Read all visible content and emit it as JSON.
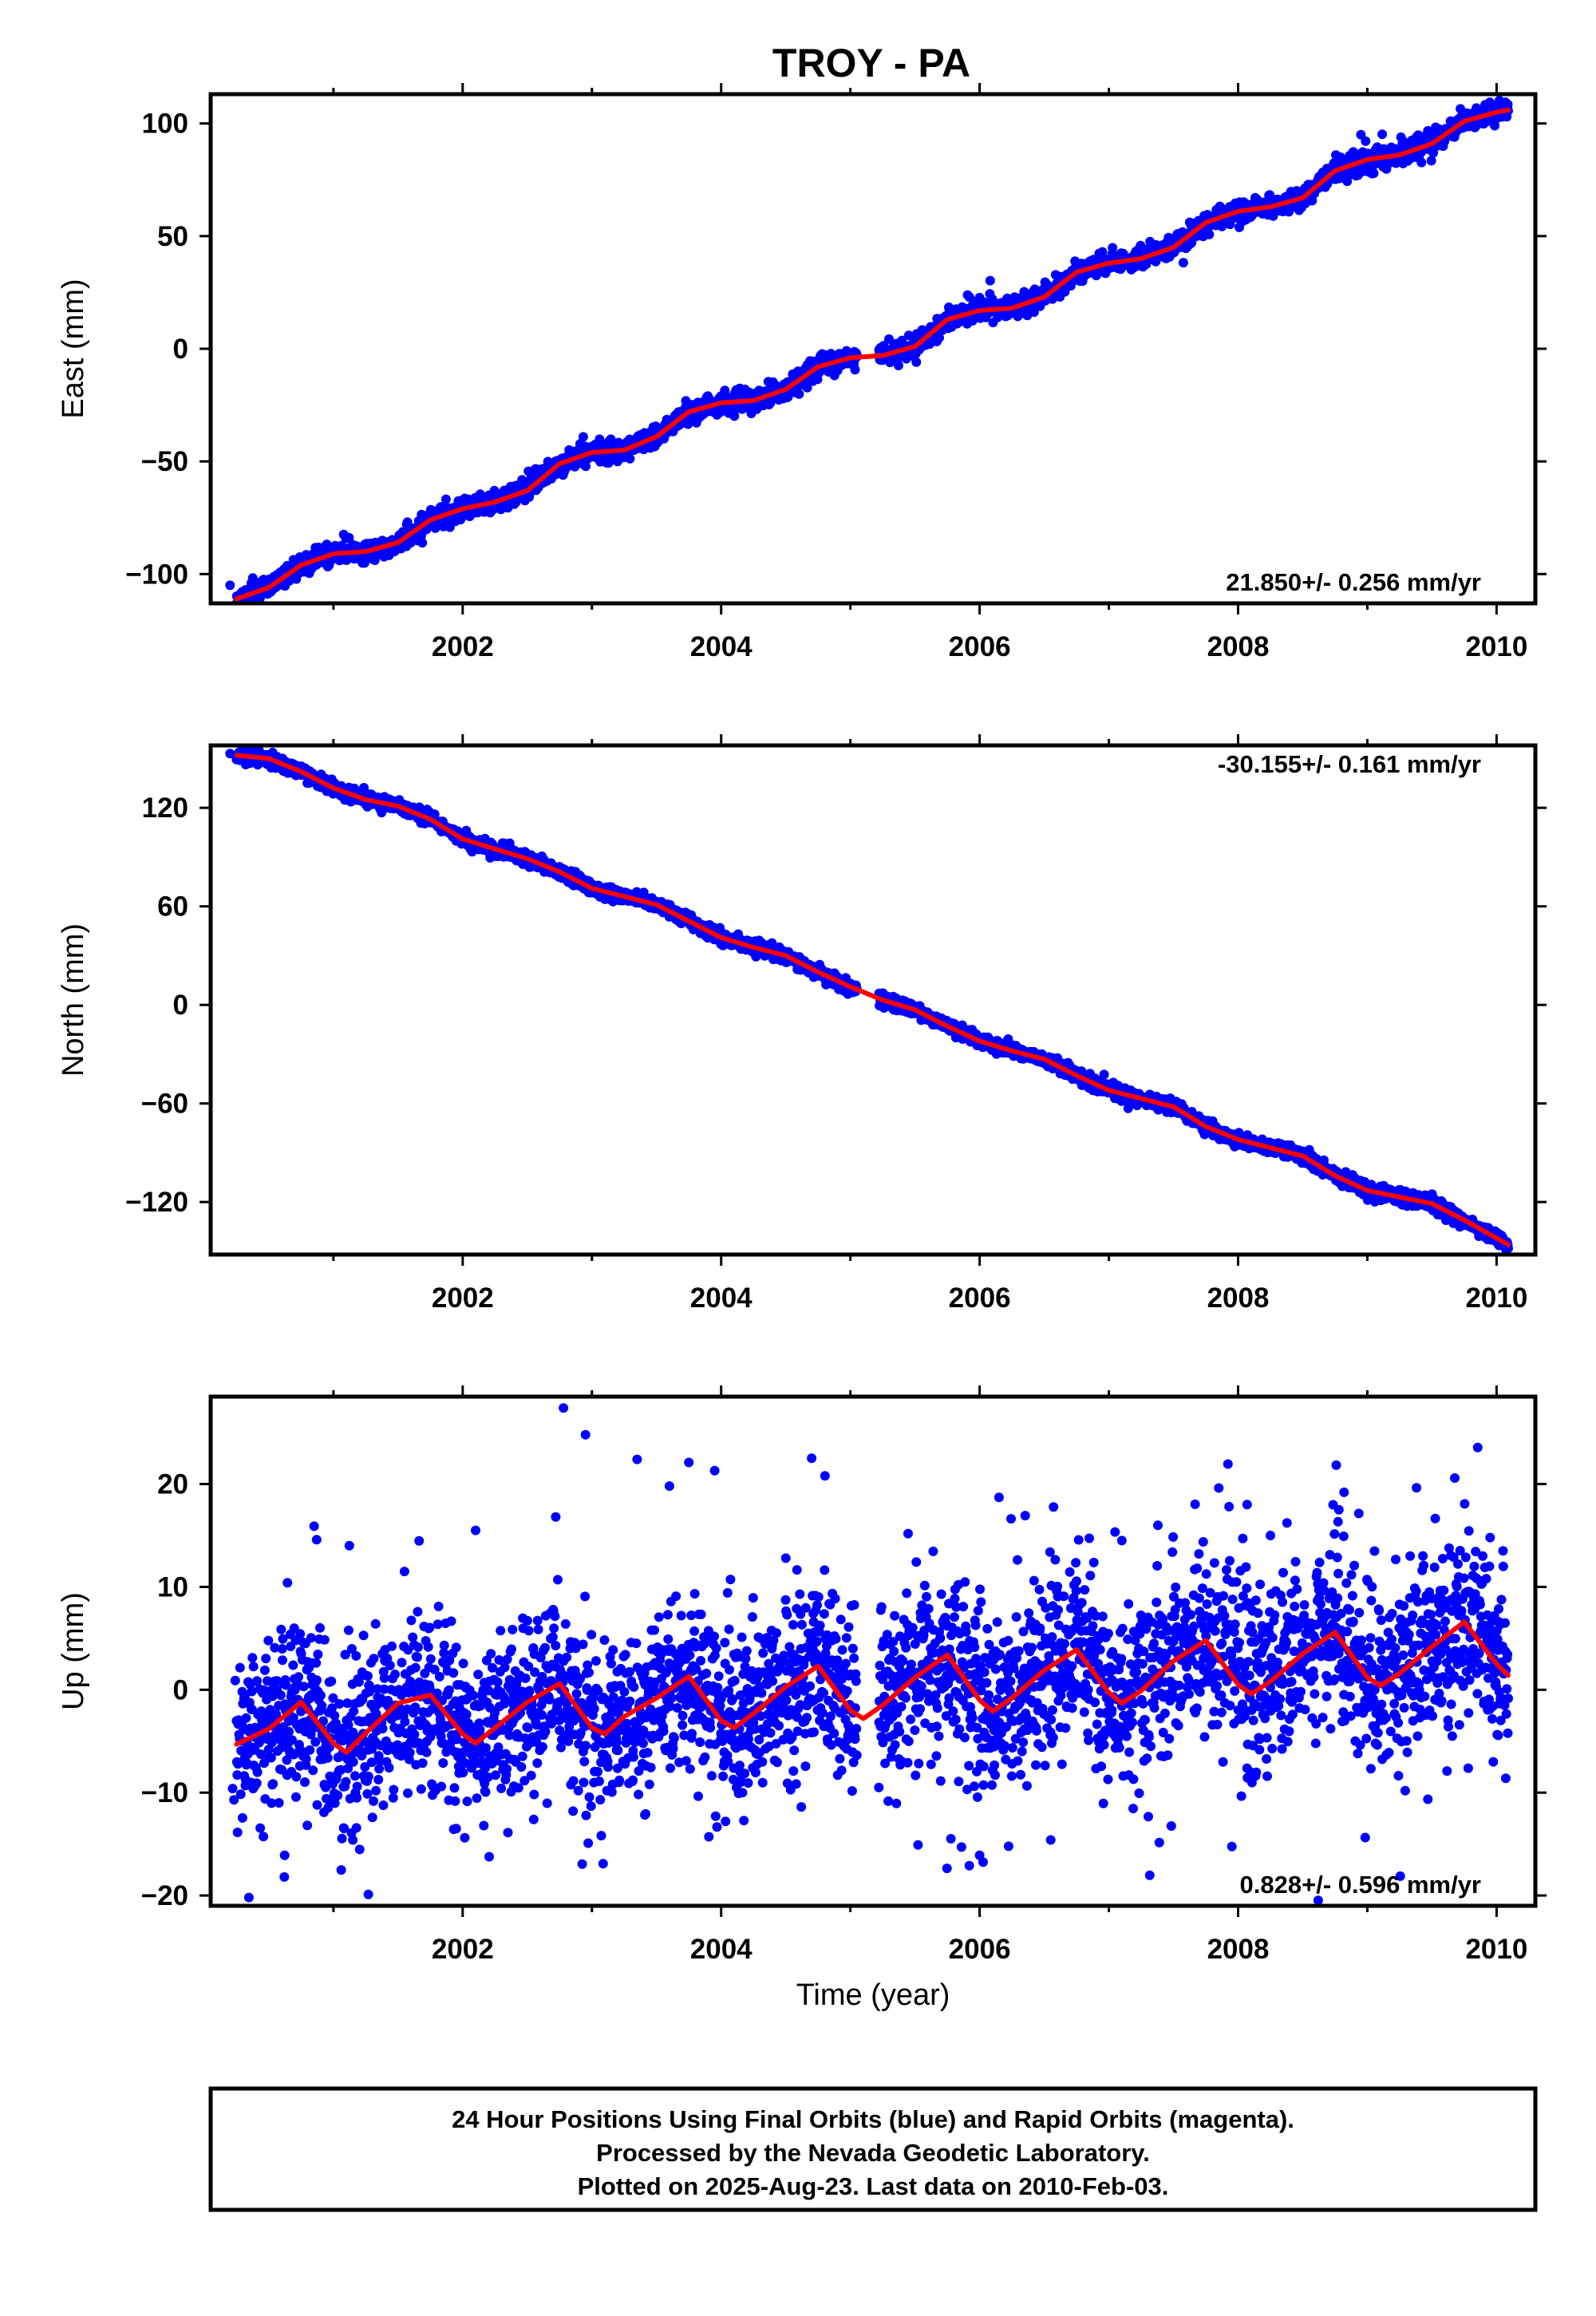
{
  "title": "TROY - PA",
  "colors": {
    "final_orbits": "#0000ff",
    "rapid_orbits": "#ff00ff",
    "model": "#ff0000",
    "frame": "#000000"
  },
  "footer": {
    "line1": "24 Hour Positions Using Final Orbits (blue) and Rapid Orbits (magenta).",
    "line2": "Processed by the Nevada Geodetic Laboratory.",
    "line3": "Plotted on 2025-Aug-23. Last data on 2010-Feb-03."
  },
  "chart_data": [
    {
      "type": "scatter",
      "title": "TROY - PA",
      "xlabel": "",
      "ylabel": "East (mm)",
      "xlim": [
        2000.05,
        2010.3
      ],
      "ylim": [
        -113,
        113
      ],
      "x_ticks": [
        2002,
        2004,
        2006,
        2008,
        2010
      ],
      "x_tick_labels": [
        "2002",
        "2004",
        "2006",
        "2008",
        "2010"
      ],
      "y_ticks": [
        -100,
        -50,
        0,
        50,
        100
      ],
      "y_tick_labels": [
        "−100",
        "−50",
        "0",
        "50",
        "100"
      ],
      "rate_label": "21.850+/- 0.256 mm/yr",
      "rate_position": "bottom-right",
      "data_gap": [
        2005.05,
        2005.22
      ],
      "daily_scatter": {
        "color": "#0000ff",
        "noise_mm": 2.2,
        "outlier_chance": 0.005,
        "seed": 11
      },
      "model_curve": {
        "color": "#ff0000",
        "x": [
          2000.25,
          2000.5,
          2000.75,
          2001.0,
          2001.25,
          2001.5,
          2001.75,
          2002.0,
          2002.25,
          2002.5,
          2002.75,
          2003.0,
          2003.25,
          2003.5,
          2003.75,
          2004.0,
          2004.25,
          2004.5,
          2004.75,
          2005.0,
          2005.25,
          2005.5,
          2005.75,
          2006.0,
          2006.25,
          2006.5,
          2006.75,
          2007.0,
          2007.25,
          2007.5,
          2007.75,
          2008.0,
          2008.25,
          2008.5,
          2008.75,
          2009.0,
          2009.25,
          2009.5,
          2009.75,
          2010.0,
          2010.09
        ],
        "y": [
          -111,
          -106,
          -96,
          -91,
          -90,
          -86,
          -76,
          -71,
          -68,
          -63,
          -51,
          -46,
          -45,
          -39,
          -28,
          -24,
          -23,
          -18,
          -8,
          -4,
          -3,
          1,
          13,
          17,
          18,
          23,
          34,
          38,
          40,
          45,
          56,
          61,
          63,
          67,
          79,
          84,
          86,
          91,
          101,
          105,
          106
        ]
      },
      "points": [
        [
          2000.2,
          -105
        ],
        [
          2008.95,
          95
        ],
        [
          2006.95,
          43
        ]
      ]
    },
    {
      "type": "scatter",
      "xlabel": "",
      "ylabel": "North (mm)",
      "xlim": [
        2000.05,
        2010.3
      ],
      "ylim": [
        -152,
        158
      ],
      "x_ticks": [
        2002,
        2004,
        2006,
        2008,
        2010
      ],
      "x_tick_labels": [
        "2002",
        "2004",
        "2006",
        "2008",
        "2010"
      ],
      "y_ticks": [
        -120,
        -60,
        0,
        60,
        120
      ],
      "y_tick_labels": [
        "−120",
        "−60",
        "0",
        "60",
        "120"
      ],
      "rate_label": "-30.155+/- 0.161 mm/yr",
      "rate_position": "top-right",
      "data_gap": [
        2005.05,
        2005.22
      ],
      "daily_scatter": {
        "color": "#0000ff",
        "noise_mm": 2.0,
        "outlier_chance": 0.0,
        "seed": 23
      },
      "model_curve": {
        "color": "#ff0000",
        "x": [
          2000.25,
          2000.5,
          2000.75,
          2001.0,
          2001.25,
          2001.5,
          2001.75,
          2002.0,
          2002.25,
          2002.5,
          2002.75,
          2003.0,
          2003.25,
          2003.5,
          2003.75,
          2004.0,
          2004.25,
          2004.5,
          2004.75,
          2005.0,
          2005.25,
          2005.5,
          2005.75,
          2006.0,
          2006.25,
          2006.5,
          2006.75,
          2007.0,
          2007.25,
          2007.5,
          2007.75,
          2008.0,
          2008.25,
          2008.5,
          2008.75,
          2009.0,
          2009.25,
          2009.5,
          2009.75,
          2010.0,
          2010.09
        ],
        "y": [
          152,
          150,
          142,
          132,
          125,
          121,
          113,
          101,
          95,
          89,
          81,
          71,
          66,
          61,
          51,
          41,
          35,
          30,
          20,
          11,
          3,
          -3,
          -13,
          -22,
          -28,
          -33,
          -43,
          -52,
          -57,
          -62,
          -74,
          -82,
          -87,
          -92,
          -104,
          -113,
          -117,
          -121,
          -131,
          -142,
          -146
        ]
      },
      "points": [
        [
          2000.2,
          153
        ]
      ]
    },
    {
      "type": "scatter",
      "xlabel": "Time (year)",
      "ylabel": "Up (mm)",
      "xlim": [
        2000.05,
        2010.3
      ],
      "ylim": [
        -21,
        28.5
      ],
      "x_ticks": [
        2002,
        2004,
        2006,
        2008,
        2010
      ],
      "x_tick_labels": [
        "2002",
        "2004",
        "2006",
        "2008",
        "2010"
      ],
      "y_ticks": [
        -20,
        -10,
        0,
        10,
        20
      ],
      "y_tick_labels": [
        "−20",
        "−10",
        "0",
        "10",
        "20"
      ],
      "rate_label": "0.828+/- 0.596 mm/yr",
      "rate_position": "bottom-right",
      "data_gap": [
        2005.05,
        2005.22
      ],
      "daily_scatter": {
        "color": "#0000ff",
        "noise_mm": 4.2,
        "outlier_chance": 0.02,
        "seed": 37
      },
      "model_curve": {
        "color": "#ff0000",
        "x": [
          2000.25,
          2000.5,
          2000.75,
          2001.0,
          2001.1,
          2001.25,
          2001.5,
          2001.75,
          2002.0,
          2002.1,
          2002.25,
          2002.5,
          2002.75,
          2003.0,
          2003.1,
          2003.25,
          2003.5,
          2003.75,
          2004.0,
          2004.1,
          2004.25,
          2004.5,
          2004.75,
          2005.0,
          2005.1,
          2005.25,
          2005.5,
          2005.75,
          2006.0,
          2006.1,
          2006.25,
          2006.5,
          2006.75,
          2007.0,
          2007.1,
          2007.25,
          2007.5,
          2007.75,
          2008.0,
          2008.1,
          2008.25,
          2008.5,
          2008.75,
          2009.0,
          2009.1,
          2009.25,
          2009.5,
          2009.75,
          2010.0,
          2010.09
        ],
        "y": [
          -5.3,
          -3.8,
          -1.2,
          -5.2,
          -6.1,
          -4.2,
          -1.3,
          -0.5,
          -4.3,
          -5.2,
          -3.7,
          -1.2,
          0.6,
          -3.7,
          -4.3,
          -2.6,
          -0.8,
          1.3,
          -3.0,
          -3.7,
          -2.3,
          0.3,
          2.3,
          -2.0,
          -2.8,
          -1.5,
          1.2,
          3.4,
          -1.0,
          -2.1,
          -0.8,
          1.9,
          3.9,
          -0.3,
          -1.3,
          -0.1,
          2.8,
          4.8,
          0.5,
          -0.4,
          0.8,
          3.5,
          5.6,
          1.2,
          0.4,
          1.6,
          4.2,
          6.6,
          2.5,
          1.4
        ]
      },
      "points": [
        [
          2000.22,
          -9.6
        ],
        [
          2000.23,
          -10.7
        ],
        [
          2000.24,
          0.9
        ],
        [
          2000.62,
          -18.2
        ],
        [
          2001.27,
          -19.9
        ],
        [
          2001.15,
          -14.6
        ],
        [
          2001.95,
          -13.5
        ],
        [
          2002.1,
          15.5
        ],
        [
          2002.78,
          27.4
        ],
        [
          2002.95,
          24.8
        ],
        [
          2003.35,
          22.4
        ],
        [
          2003.6,
          19.8
        ],
        [
          2003.75,
          22.1
        ],
        [
          2003.95,
          21.3
        ],
        [
          2004.7,
          22.5
        ],
        [
          2006.15,
          18.7
        ],
        [
          2006.55,
          -14.6
        ],
        [
          2006.0,
          -16.1
        ],
        [
          2005.92,
          -17.1
        ],
        [
          2007.93,
          17.8
        ],
        [
          2008.07,
          18.0
        ],
        [
          2008.78,
          17.5
        ],
        [
          2008.82,
          19.2
        ],
        [
          2004.15,
          -9.0
        ],
        [
          2007.1,
          14.5
        ],
        [
          2008.25,
          15.0
        ],
        [
          2009.95,
          14.8
        ],
        [
          2010.05,
          13.5
        ],
        [
          2001.55,
          11.5
        ],
        [
          2002.72,
          16.8
        ],
        [
          2003.1,
          -6.8
        ],
        [
          2005.22,
          -9.5
        ],
        [
          2004.5,
          12.8
        ],
        [
          2000.85,
          15.9
        ],
        [
          2000.87,
          14.6
        ]
      ]
    }
  ]
}
